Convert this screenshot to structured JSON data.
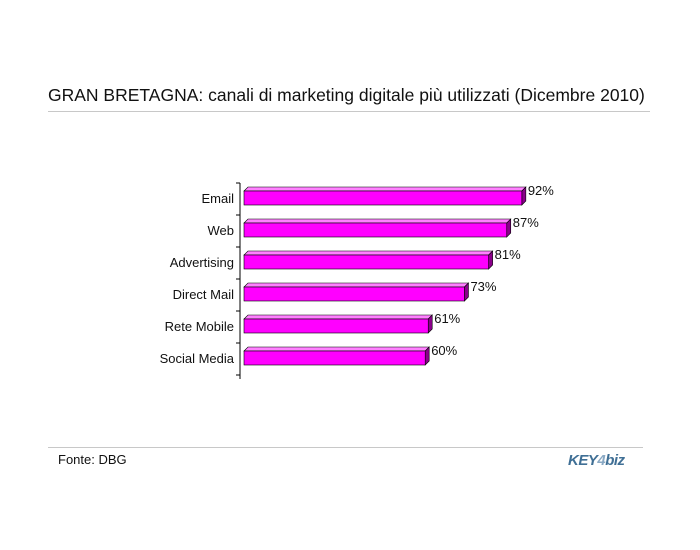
{
  "page": {
    "title": "GRAN BRETAGNA: canali di marketing digitale più utilizzati (Dicembre 2010)",
    "source": "Fonte: DBG",
    "logo_text": "KEY4biz"
  },
  "colors": {
    "bar_front": "#ff00ff",
    "bar_top": "#ff80ff",
    "bar_side": "#8b008b",
    "axis": "#000000",
    "text": "#111111"
  },
  "chart_data": {
    "type": "bar",
    "orientation": "horizontal",
    "categories": [
      "Email",
      "Web",
      "Advertising",
      "Direct Mail",
      "Rete Mobile",
      "Social Media"
    ],
    "values": [
      92,
      87,
      81,
      73,
      61,
      60
    ],
    "value_labels": [
      "92%",
      "87%",
      "81%",
      "73%",
      "61%",
      "60%"
    ],
    "unit": "%",
    "xlim": [
      0,
      100
    ],
    "grid": false,
    "legend": "none",
    "three_d": true
  }
}
